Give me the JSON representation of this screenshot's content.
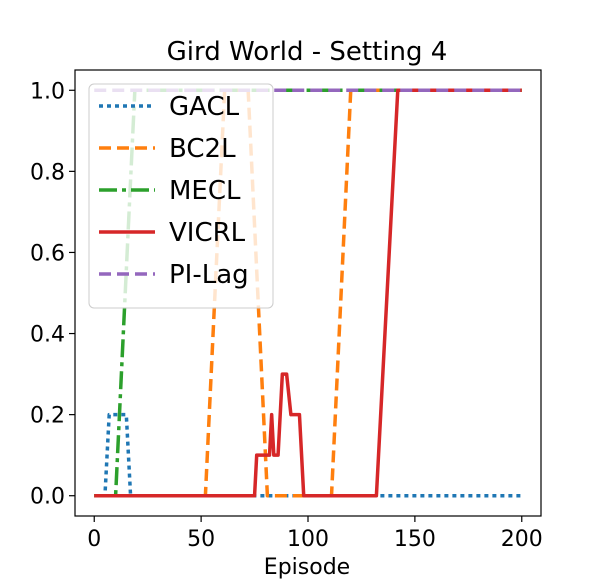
{
  "chart_data": {
    "type": "line",
    "title": "Gird World - Setting 4",
    "xlabel": "Episode",
    "ylabel": "",
    "xlim": [
      -9,
      209
    ],
    "ylim": [
      -0.05,
      1.05
    ],
    "xticks": [
      0,
      50,
      100,
      150,
      200
    ],
    "yticks": [
      0.0,
      0.2,
      0.4,
      0.6,
      0.8,
      1.0
    ],
    "xtick_labels": [
      "0",
      "50",
      "100",
      "150",
      "200"
    ],
    "ytick_labels": [
      "0.0",
      "0.2",
      "0.4",
      "0.6",
      "0.8",
      "1.0"
    ],
    "grid": false,
    "legend_position": "upper-left",
    "series": [
      {
        "name": "GACL",
        "color": "#1f77b4",
        "style": "dotted",
        "x": [
          0,
          5,
          7,
          13,
          15,
          17,
          200
        ],
        "y": [
          0,
          0,
          0.2,
          0.2,
          0.2,
          0,
          0
        ]
      },
      {
        "name": "BC2L",
        "color": "#ff7f0e",
        "style": "dashed",
        "x": [
          0,
          52,
          61,
          72,
          81,
          85,
          100,
          111,
          120,
          200
        ],
        "y": [
          0,
          0,
          1,
          1,
          0,
          0,
          0,
          0,
          1,
          1
        ]
      },
      {
        "name": "MECL",
        "color": "#2ca02c",
        "style": "dashdot",
        "x": [
          0,
          10,
          19,
          200
        ],
        "y": [
          0,
          0,
          1,
          1
        ]
      },
      {
        "name": "VICRL",
        "color": "#d62728",
        "style": "solid",
        "x": [
          0,
          75,
          76,
          81,
          82,
          83,
          84,
          86,
          88,
          90,
          92,
          94,
          96,
          98,
          100,
          132,
          142,
          200
        ],
        "y": [
          0,
          0,
          0.1,
          0.1,
          0.1,
          0.2,
          0.1,
          0.1,
          0.3,
          0.3,
          0.2,
          0.2,
          0.2,
          0,
          0,
          0,
          1,
          1
        ]
      },
      {
        "name": "PI-Lag",
        "color": "#9467bd",
        "style": "dashed",
        "x": [
          0,
          200
        ],
        "y": [
          1,
          1
        ]
      }
    ]
  }
}
